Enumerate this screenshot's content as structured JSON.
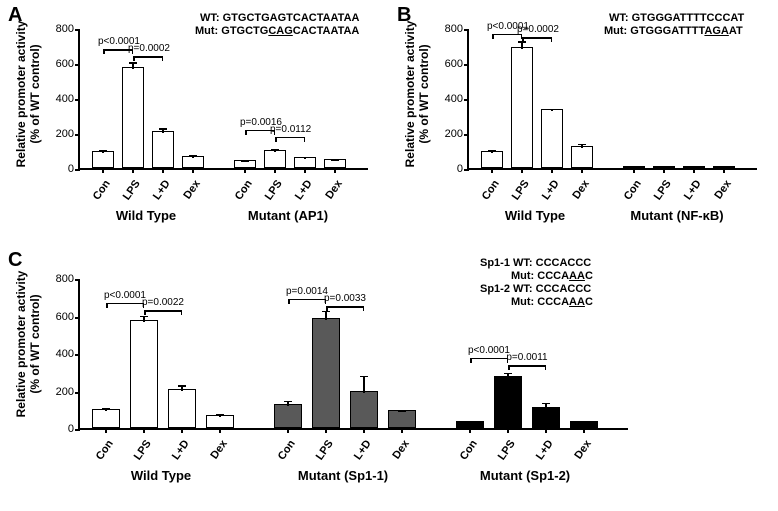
{
  "global": {
    "background_color": "#ffffff",
    "axis_color": "#000000",
    "font_family": "Arial, Helvetica, sans-serif",
    "y_axis_label": "Relative promoter activity\n(% of WT control)",
    "x_labels": [
      "Con",
      "LPS",
      "L+D",
      "Dex"
    ]
  },
  "panelA": {
    "label": "A",
    "ylim": [
      0,
      800
    ],
    "ytick_step": 200,
    "seq_wt_prefix": "WT: ",
    "seq_wt": "GTGCTGAGTCACTAATAA",
    "seq_mut_prefix": "Mut: ",
    "seq_mut_pre": "GTGCTG",
    "seq_mut_underline": "CAG",
    "seq_mut_post": "CACTAATAA",
    "groups": [
      {
        "name": "Wild Type",
        "bar_color": "#ffffff",
        "values": [
          100,
          575,
          210,
          70
        ],
        "errors": [
          15,
          40,
          30,
          15
        ],
        "p_values": [
          {
            "from": 0,
            "to": 1,
            "text": "p<0.0001",
            "y": 690
          },
          {
            "from": 1,
            "to": 2,
            "text": "p=0.0002",
            "y": 650
          }
        ]
      },
      {
        "name": "Mutant (AP1)",
        "bar_color": "#ffffff",
        "values": [
          45,
          105,
          65,
          50
        ],
        "errors": [
          10,
          15,
          10,
          10
        ],
        "p_values": [
          {
            "from": 0,
            "to": 1,
            "text": "p=0.0016",
            "y": 230
          },
          {
            "from": 1,
            "to": 2,
            "text": "p=0.0112",
            "y": 190
          }
        ]
      }
    ]
  },
  "panelB": {
    "label": "B",
    "ylim": [
      0,
      800
    ],
    "ytick_step": 200,
    "seq_wt_prefix": "WT: ",
    "seq_wt": "GTGGGATTTTCCCAT",
    "seq_mut_prefix": "Mut: ",
    "seq_mut_pre": "GTGGGATTTT",
    "seq_mut_underline": "AGA",
    "seq_mut_post": "AT",
    "groups": [
      {
        "name": "Wild Type",
        "bar_color": "#ffffff",
        "values": [
          100,
          690,
          335,
          125
        ],
        "errors": [
          15,
          45,
          15,
          25
        ],
        "p_values": [
          {
            "from": 0,
            "to": 1,
            "text": "p<0.0001",
            "y": 780
          },
          {
            "from": 1,
            "to": 2,
            "text": "p=0.0002",
            "y": 760
          }
        ]
      },
      {
        "name": "Mutant (NF-κB)",
        "bar_color": "#ffffff",
        "values": [
          10,
          12,
          10,
          8
        ],
        "errors": [
          3,
          3,
          3,
          3
        ],
        "p_values": []
      }
    ]
  },
  "panelC": {
    "label": "C",
    "ylim": [
      0,
      800
    ],
    "ytick_step": 200,
    "seq_sp11_wt_prefix": "Sp1-1 WT: ",
    "seq_sp11_wt": "CCCACCC",
    "seq_sp11_mut_prefix": "Mut: ",
    "seq_sp11_mut_pre": "CCCA",
    "seq_sp11_mut_underline": "AA",
    "seq_sp11_mut_post": "C",
    "seq_sp12_wt_prefix": "Sp1-2 WT: ",
    "seq_sp12_wt": "CCCACCC",
    "seq_sp12_mut_prefix": "Mut: ",
    "seq_sp12_mut_pre": "CCCA",
    "seq_sp12_mut_underline": "AA",
    "seq_sp12_mut_post": "C",
    "groups": [
      {
        "name": "Wild Type",
        "bar_color": "#ffffff",
        "values": [
          100,
          575,
          210,
          70
        ],
        "errors": [
          15,
          35,
          30,
          15
        ],
        "p_values": [
          {
            "from": 0,
            "to": 1,
            "text": "p<0.0001",
            "y": 680
          },
          {
            "from": 1,
            "to": 2,
            "text": "p=0.0022",
            "y": 640
          }
        ]
      },
      {
        "name": "Mutant (Sp1-1)",
        "bar_color": "#595959",
        "values": [
          130,
          585,
          195,
          95
        ],
        "errors": [
          25,
          50,
          95,
          10
        ],
        "p_values": [
          {
            "from": 0,
            "to": 1,
            "text": "p=0.0014",
            "y": 700
          },
          {
            "from": 1,
            "to": 2,
            "text": "p=0.0033",
            "y": 660
          }
        ]
      },
      {
        "name": "Mutant (Sp1-2)",
        "bar_color": "#000000",
        "values": [
          35,
          280,
          110,
          35
        ],
        "errors": [
          8,
          25,
          35,
          8
        ],
        "p_values": [
          {
            "from": 0,
            "to": 1,
            "text": "p<0.0001",
            "y": 385
          },
          {
            "from": 1,
            "to": 2,
            "text": "p=0.0011",
            "y": 345
          }
        ]
      }
    ]
  }
}
